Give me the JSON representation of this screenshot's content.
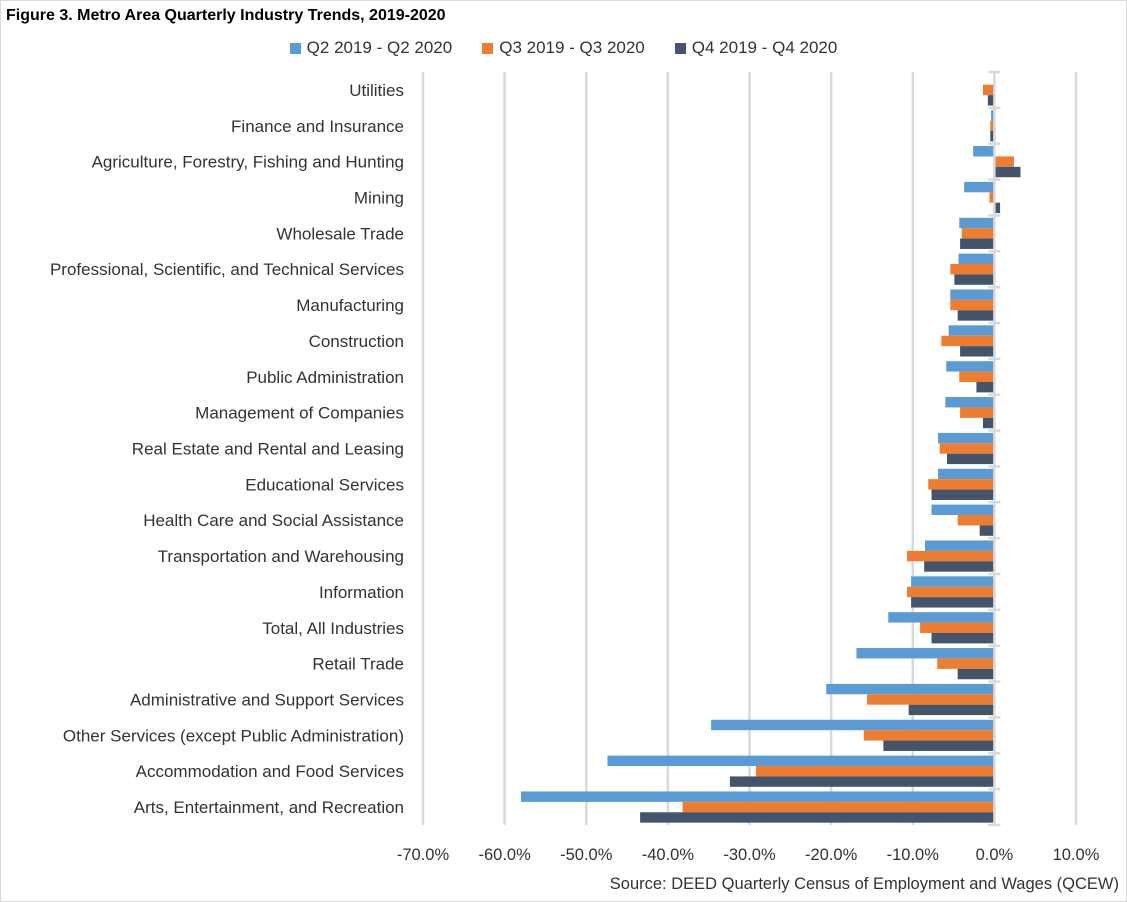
{
  "chart_data": {
    "type": "bar",
    "orientation": "horizontal",
    "title": "Figure 3. Metro Area Quarterly Industry Trends, 2019-2020",
    "xlabel": "",
    "ylabel": "",
    "xlim": [
      -70,
      10
    ],
    "x_ticks": [
      "-70.0%",
      "-60.0%",
      "-50.0%",
      "-40.0%",
      "-30.0%",
      "-20.0%",
      "-10.0%",
      "0.0%",
      "10.0%"
    ],
    "x_tick_values": [
      -70,
      -60,
      -50,
      -40,
      -30,
      -20,
      -10,
      0,
      10
    ],
    "grid": true,
    "legend_position": "top",
    "source": "Source: DEED Quarterly Census of Employment and Wages (QCEW)",
    "categories": [
      "Utilities",
      "Finance and Insurance",
      "Agriculture, Forestry, Fishing and Hunting",
      "Mining",
      "Wholesale Trade",
      "Professional, Scientific, and Technical Services",
      "Manufacturing",
      "Construction",
      "Public Administration",
      "Management of Companies",
      "Real Estate and Rental and Leasing",
      "Educational Services",
      "Health Care and Social Assistance",
      "Transportation and Warehousing",
      "Information",
      "Total, All Industries",
      "Retail Trade",
      "Administrative and Support Services",
      "Other Services (except Public Administration)",
      "Accommodation and Food Services",
      "Arts, Entertainment, and Recreation"
    ],
    "series": [
      {
        "name": "Q2 2019 - Q2 2020",
        "color": "#5b9bd5",
        "values": [
          0.0,
          -0.4,
          -2.6,
          -3.7,
          -4.3,
          -4.4,
          -5.4,
          -5.6,
          -5.9,
          -6.0,
          -6.9,
          -6.9,
          -7.7,
          -8.5,
          -10.2,
          -13.0,
          -16.9,
          -20.6,
          -34.7,
          -47.4,
          -58.0
        ]
      },
      {
        "name": "Q3 2019 - Q3 2020",
        "color": "#ed7d31",
        "values": [
          -1.4,
          -0.5,
          2.4,
          -0.6,
          -4.0,
          -5.4,
          -5.4,
          -6.5,
          -4.3,
          -4.2,
          -6.7,
          -8.1,
          -4.5,
          -10.7,
          -10.7,
          -9.1,
          -7.0,
          -15.6,
          -16.0,
          -29.2,
          -38.2
        ]
      },
      {
        "name": "Q4 2019 - Q4 2020",
        "color": "#44546a",
        "values": [
          -0.8,
          -0.5,
          3.2,
          0.7,
          -4.2,
          -4.9,
          -4.5,
          -4.2,
          -2.2,
          -1.4,
          -5.8,
          -7.7,
          -1.8,
          -8.6,
          -10.2,
          -7.7,
          -4.5,
          -10.5,
          -13.6,
          -32.4,
          -43.4
        ]
      }
    ]
  }
}
